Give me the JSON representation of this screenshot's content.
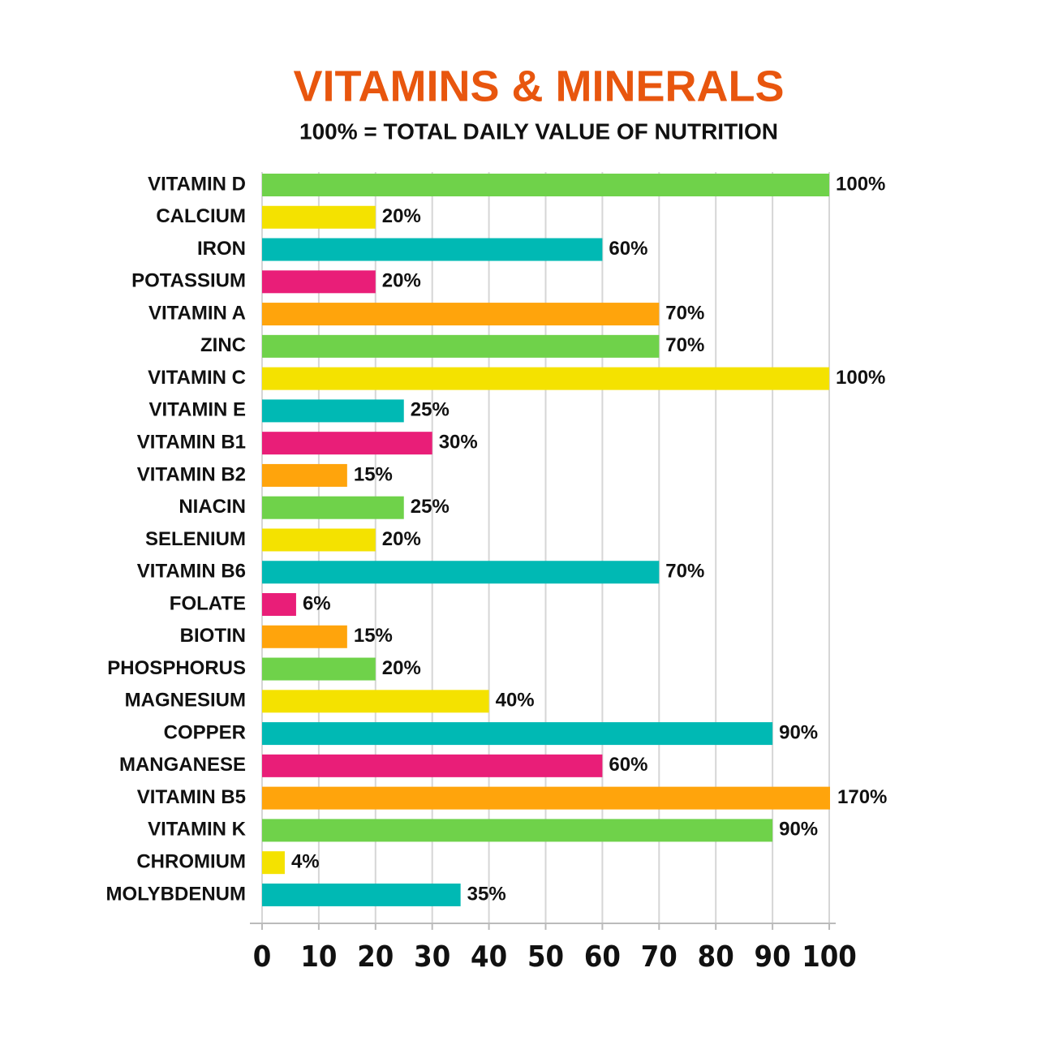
{
  "chart_data": {
    "type": "barh",
    "title": "VITAMINS & MINERALS",
    "subtitle": "100% = TOTAL DAILY VALUE OF NUTRITION",
    "categories": [
      "VITAMIN D",
      "CALCIUM",
      "IRON",
      "POTASSIUM",
      "VITAMIN A",
      "ZINC",
      "VITAMIN C",
      "VITAMIN E",
      "VITAMIN B1",
      "VITAMIN B2",
      "NIACIN",
      "SELENIUM",
      "VITAMIN B6",
      "FOLATE",
      "BIOTIN",
      "PHOSPHORUS",
      "MAGNESIUM",
      "COPPER",
      "MANGANESE",
      "VITAMIN B5",
      "VITAMIN K",
      "CHROMIUM",
      "MOLYBDENUM"
    ],
    "values": [
      100,
      20,
      60,
      20,
      70,
      70,
      100,
      25,
      30,
      15,
      25,
      20,
      70,
      6,
      15,
      20,
      40,
      90,
      60,
      170,
      90,
      4,
      35
    ],
    "value_labels": [
      "100%",
      "20%",
      "60%",
      "20%",
      "70%",
      "70%",
      "100%",
      "25%",
      "30%",
      "15%",
      "25%",
      "20%",
      "70%",
      "6%",
      "15%",
      "20%",
      "40%",
      "90%",
      "60%",
      "170%",
      "90%",
      "4%",
      "35%"
    ],
    "colors": [
      "#6fd24a",
      "#f4e200",
      "#00b9b4",
      "#e91e78",
      "#ffa40c",
      "#6fd24a",
      "#f4e200",
      "#00b9b4",
      "#e91e78",
      "#ffa40c",
      "#6fd24a",
      "#f4e200",
      "#00b9b4",
      "#e91e78",
      "#ffa40c",
      "#6fd24a",
      "#f4e200",
      "#00b9b4",
      "#e91e78",
      "#ffa40c",
      "#6fd24a",
      "#f4e200",
      "#00b9b4"
    ],
    "xlim": [
      0,
      100
    ],
    "xticks": [
      0,
      10,
      20,
      30,
      40,
      50,
      60,
      70,
      80,
      90,
      100
    ],
    "grid": true,
    "title_color": "#e8560e"
  }
}
